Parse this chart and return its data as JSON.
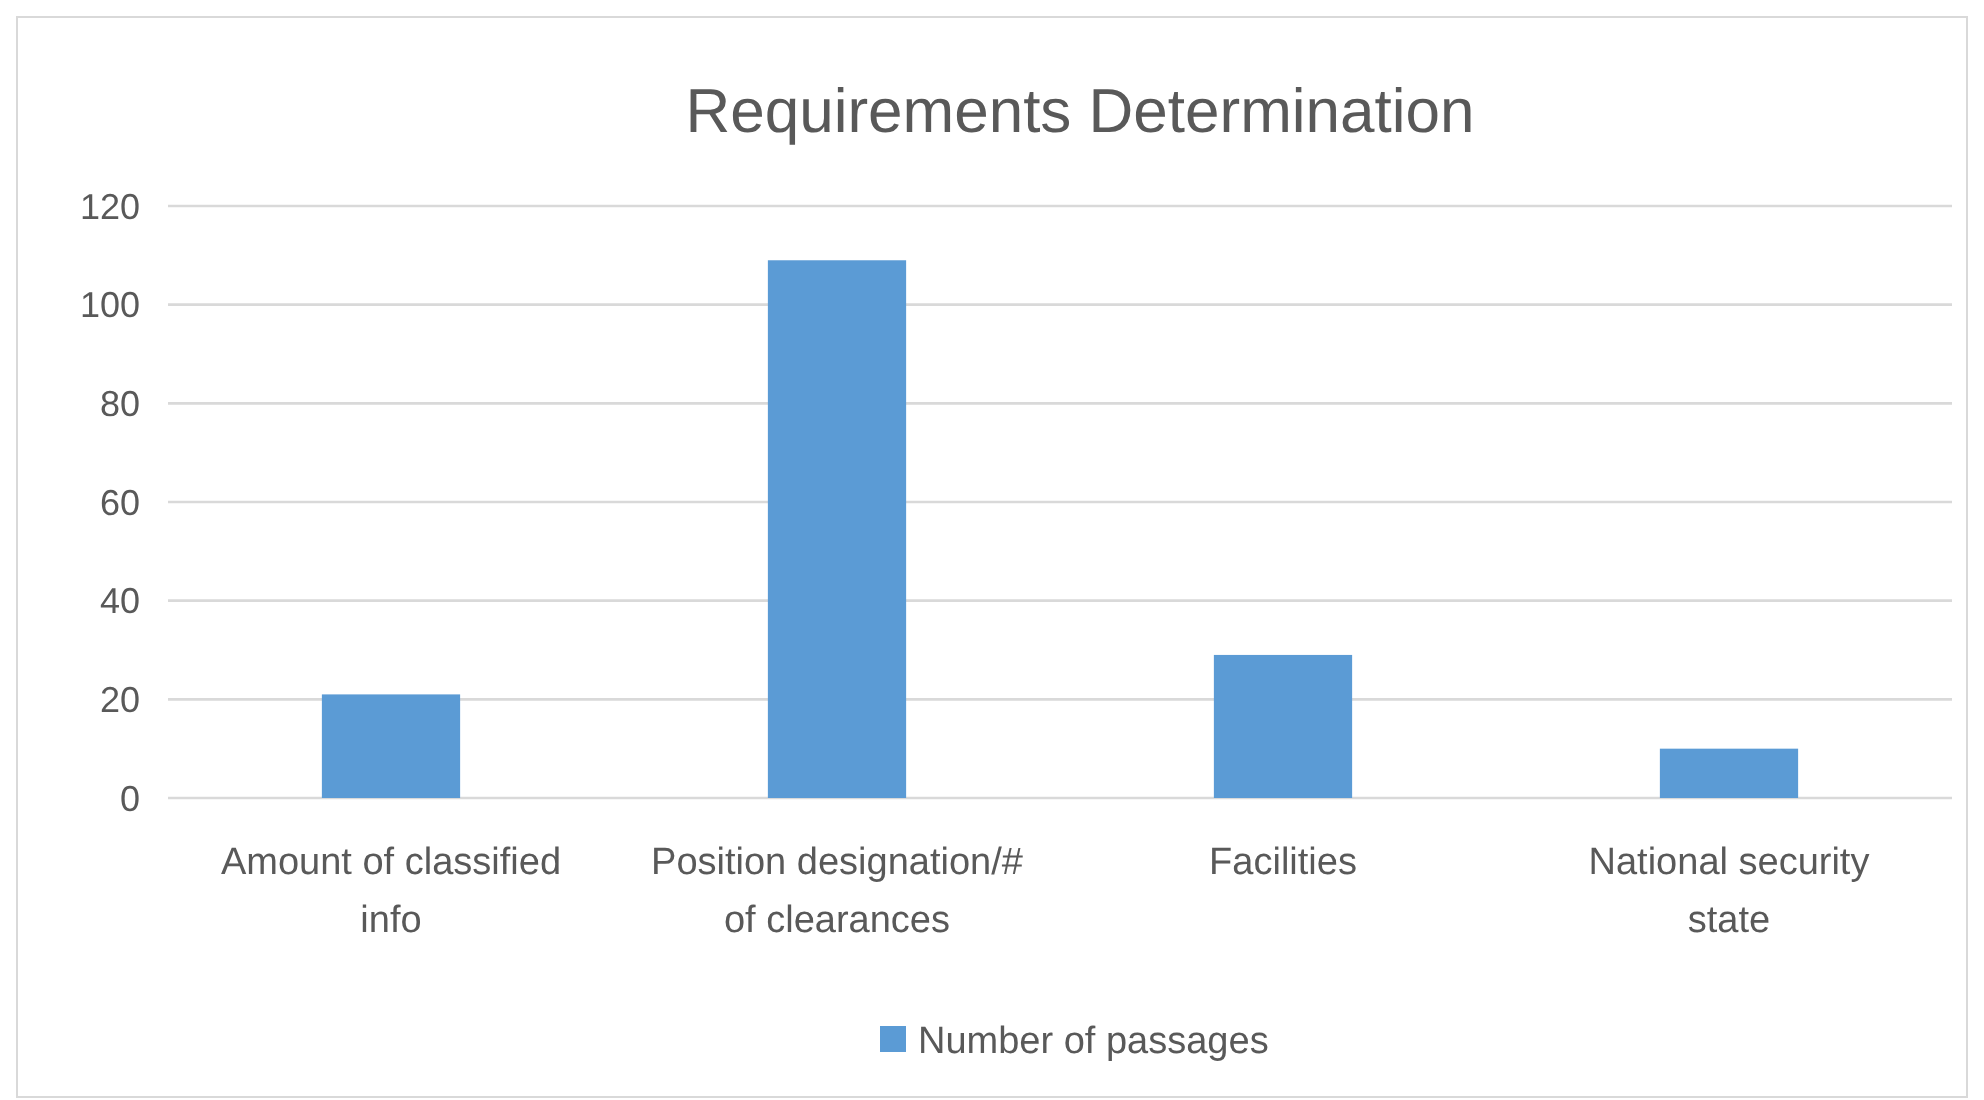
{
  "chart_data": {
    "type": "bar",
    "title": "Requirements Determination",
    "categories": [
      "Amount of classified info",
      "Position designation/# of clearances",
      "Facilities",
      "National security state"
    ],
    "series": [
      {
        "name": "Number of passages",
        "color": "#5b9bd5",
        "values": [
          21,
          109,
          29,
          10
        ]
      }
    ],
    "ylim": [
      0,
      120
    ],
    "yticks": [
      0,
      20,
      40,
      60,
      80,
      100,
      120
    ],
    "grid": "y",
    "legend": "bottom"
  }
}
